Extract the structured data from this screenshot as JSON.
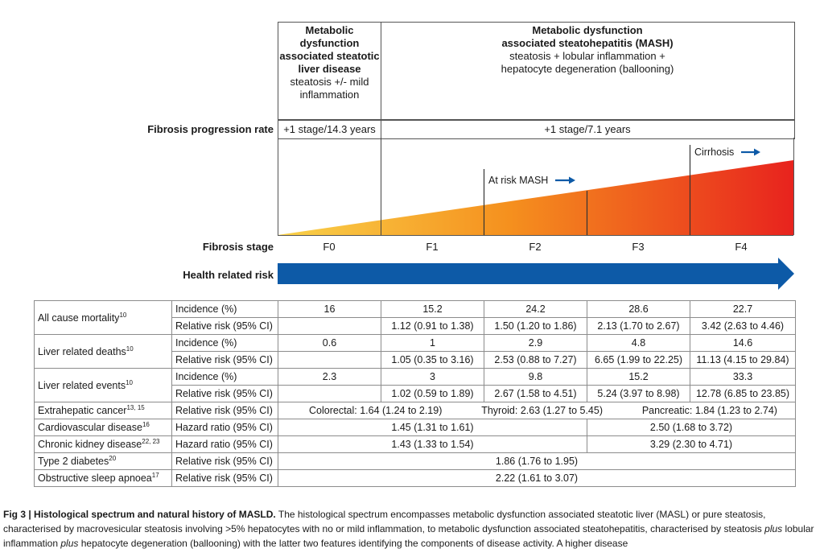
{
  "header": {
    "masl_title": "Metabolic dysfunction associated steatotic liver disease",
    "masl_sub": "steatosis +/- mild inflammation",
    "mash_title_line1": "Metabolic dysfunction",
    "mash_title_line2": "associated steatohepatitis (MASH)",
    "mash_sub_line1": "steatosis + lobular inflammation +",
    "mash_sub_line2": "hepatocyte degeneration (ballooning)"
  },
  "progression": {
    "label": "Fibrosis progression rate",
    "masl_rate": "+1 stage/14.3 years",
    "mash_rate": "+1 stage/7.1 years"
  },
  "markers": {
    "at_risk": "At risk MASH",
    "cirrhosis": "Cirrhosis"
  },
  "stages": {
    "label": "Fibrosis stage",
    "items": [
      "F0",
      "F1",
      "F2",
      "F3",
      "F4"
    ]
  },
  "risk": {
    "label": "Health related risk"
  },
  "colors": {
    "arrow_blue": "#0d5aa7",
    "wedge_yellow": "#f9d24a",
    "wedge_orange": "#f5901e",
    "wedge_red": "#e8231e"
  },
  "table": {
    "mortality": {
      "name": "All cause mortality",
      "ref": "10",
      "m1": "Incidence (%)",
      "m2": "Relative risk (95% CI)",
      "inc": [
        "16",
        "15.2",
        "24.2",
        "28.6",
        "22.7"
      ],
      "rr": [
        "1.12 (0.91 to 1.38)",
        "1.50 (1.20 to 1.86)",
        "2.13 (1.70 to 2.67)",
        "3.42 (2.63 to 4.46)"
      ]
    },
    "liver_deaths": {
      "name": "Liver related deaths",
      "ref": "10",
      "m1": "Incidence (%)",
      "m2": "Relative risk (95% CI)",
      "inc": [
        "0.6",
        "1",
        "2.9",
        "4.8",
        "14.6"
      ],
      "rr": [
        "1.05 (0.35 to 3.16)",
        "2.53 (0.88 to 7.27)",
        "6.65 (1.99 to 22.25)",
        "11.13 (4.15 to 29.84)"
      ]
    },
    "liver_events": {
      "name": "Liver related events",
      "ref": "10",
      "m1": "Incidence (%)",
      "m2": "Relative risk (95% CI)",
      "inc": [
        "2.3",
        "3",
        "9.8",
        "15.2",
        "33.3"
      ],
      "rr": [
        "1.02 (0.59 to 1.89)",
        "2.67 (1.58 to 4.51)",
        "5.24 (3.97 to 8.98)",
        "12.78 (6.85 to 23.85)"
      ]
    },
    "extrahepatic": {
      "name": "Extrahepatic cancer",
      "ref": "13, 15",
      "m": "Relative risk (95% CI)",
      "colorectal": "Colorectal: 1.64 (1.24 to 2.19)",
      "thyroid": "Thyroid: 2.63 (1.27 to 5.45)",
      "pancreatic": "Pancreatic: 1.84 (1.23 to 2.74)"
    },
    "cardio": {
      "name": "Cardiovascular disease",
      "ref": "16",
      "m": "Hazard ratio (95% CI)",
      "early": "1.45 (1.31 to 1.61)",
      "late": "2.50 (1.68 to 3.72)"
    },
    "ckd": {
      "name": "Chronic kidney disease",
      "ref": "22, 23",
      "m": "Hazard ratio (95% CI)",
      "early": "1.43 (1.33 to 1.54)",
      "late": "3.29 (2.30 to 4.71)"
    },
    "t2d": {
      "name": "Type 2 diabetes",
      "ref": "20",
      "m": "Relative risk (95% CI)",
      "all": "1.86 (1.76 to 1.95)"
    },
    "osa": {
      "name": "Obstructive sleep apnoea",
      "ref": "17",
      "m": "Relative risk (95% CI)",
      "all": "2.22 (1.61 to 3.07)"
    }
  },
  "caption": {
    "fig": "Fig 3",
    "title": "Histological spectrum and natural history of MASLD.",
    "t1": "The histological spectrum encompasses metabolic dysfunction associated steatotic liver (MASL) or pure steatosis, characterised by macrovesicular steatosis involving >5% hepatocytes with no or mild inflammation, to metabolic dysfunction associated steatohepatitis, characterised by steatosis",
    "plus": "plus",
    "t2": "lobular inflammation",
    "t3": "hepatocyte degeneration (ballooning) with the latter two features identifying the components of disease activity. A higher disease"
  }
}
